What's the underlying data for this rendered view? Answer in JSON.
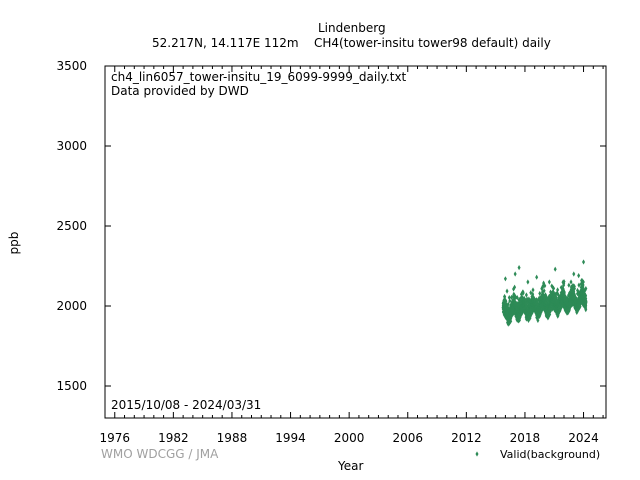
{
  "header": {
    "station": "Lindenberg",
    "location_line": "52.217N, 14.117E 112m",
    "species_line": "CH4(tower-insitu tower98 default) daily"
  },
  "plot_text": {
    "filename": "ch4_lin6057_tower-insitu_19_6099-9999_daily.txt",
    "provider": "Data provided by DWD",
    "date_range": "2015/10/08 - 2024/03/31"
  },
  "footer": {
    "credit": "WMO WDCGG / JMA"
  },
  "chart_data": {
    "type": "scatter",
    "xlabel": "Year",
    "ylabel": "ppb",
    "xlim": [
      1975,
      2026.3
    ],
    "ylim": [
      1300,
      3500
    ],
    "x_ticks": [
      1976,
      1982,
      1988,
      1994,
      2000,
      2006,
      2012,
      2018,
      2024
    ],
    "y_ticks": [
      1500,
      2000,
      2500,
      3000,
      3500
    ],
    "grid": false,
    "legend_position": "bottom-right",
    "series": [
      {
        "name": "Valid(background)",
        "color": "#2e8b57",
        "marker": "diamond",
        "date_start": "2015-10-08",
        "date_end": "2024-03-31",
        "trend_start_ppb": 1960,
        "trend_end_ppb": 2040,
        "seasonal_amplitude_ppb": 30,
        "spread_ppb": 40,
        "upper_outliers": [
          {
            "x": 2016.0,
            "y": 2170
          },
          {
            "x": 2017.0,
            "y": 2200
          },
          {
            "x": 2017.4,
            "y": 2240
          },
          {
            "x": 2018.3,
            "y": 2150
          },
          {
            "x": 2019.2,
            "y": 2180
          },
          {
            "x": 2020.5,
            "y": 2150
          },
          {
            "x": 2021.1,
            "y": 2230
          },
          {
            "x": 2022.5,
            "y": 2130
          },
          {
            "x": 2023.0,
            "y": 2200
          },
          {
            "x": 2023.5,
            "y": 2190
          },
          {
            "x": 2024.0,
            "y": 2275
          }
        ]
      }
    ]
  }
}
